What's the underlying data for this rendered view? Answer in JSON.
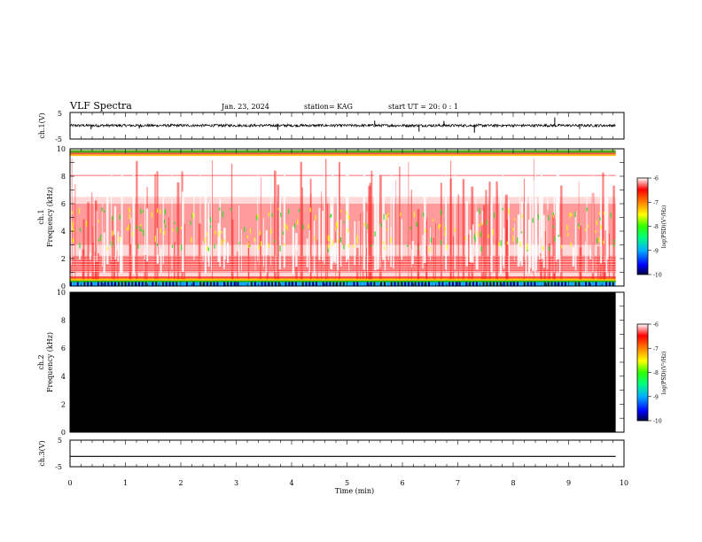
{
  "header": {
    "title": "VLF Spectra",
    "date": "Jan. 23, 2024",
    "station": "station= KAG",
    "start_ut": "start UT =  20: 0  : 1"
  },
  "chart_data": [
    {
      "type": "line",
      "panel": "ch1-waveform",
      "ylabel": "ch.1(V)",
      "xlim": [
        0,
        10
      ],
      "ylim": [
        -5,
        5
      ],
      "yticks": [
        "5",
        "-5"
      ],
      "series_color": "#000000",
      "baseline": 0.1,
      "noise_amplitude": 0.5,
      "spikes": [
        {
          "x": 0.38,
          "y": -1.3
        },
        {
          "x": 1.25,
          "y": -1.0
        },
        {
          "x": 3.75,
          "y": -1.6
        },
        {
          "x": 5.5,
          "y": 1.9
        },
        {
          "x": 6.3,
          "y": -2.2
        },
        {
          "x": 6.75,
          "y": 1.8
        },
        {
          "x": 7.3,
          "y": -2.6
        },
        {
          "x": 8.75,
          "y": 3.1
        },
        {
          "x": 9.2,
          "y": -1.2
        }
      ]
    },
    {
      "type": "heatmap",
      "panel": "ch1-spectrogram",
      "ylabel_line1": "ch.1",
      "ylabel_line2": "Frequency (kHz)",
      "xlim": [
        0,
        10
      ],
      "ylim": [
        0,
        10
      ],
      "yticks": [
        "0",
        "2",
        "4",
        "6",
        "8",
        "10"
      ],
      "data_extent_min": 9.85,
      "bands_khz": [
        {
          "from": 9.5,
          "to": 9.9,
          "level": -6.7
        },
        {
          "from": 8.0,
          "to": 8.1,
          "level": -7.5
        },
        {
          "from": 3.0,
          "to": 6.0,
          "level": -7.6
        },
        {
          "from": 1.0,
          "to": 2.2,
          "level": -7.1
        },
        {
          "from": 0.3,
          "to": 0.7,
          "level": -6.6
        },
        {
          "from": 0.0,
          "to": 0.3,
          "level": -9.0
        }
      ]
    },
    {
      "type": "heatmap",
      "panel": "ch2-spectrogram",
      "ylabel_line1": "ch.2",
      "ylabel_line2": "Frequency (kHz)",
      "xlim": [
        0,
        10
      ],
      "ylim": [
        0,
        10
      ],
      "yticks": [
        "0",
        "2",
        "4",
        "6",
        "8",
        "10"
      ],
      "data_extent_min": 9.85,
      "fill_color": "#000000"
    },
    {
      "type": "line",
      "panel": "ch3-waveform",
      "ylabel": "ch.3(V)",
      "xlim": [
        0,
        10
      ],
      "ylim": [
        -5,
        5
      ],
      "yticks": [
        "5",
        "-5"
      ],
      "constant_value": -1.1,
      "data_extent_min": 9.85,
      "xlabel": "Time (min)",
      "xticks": [
        "0",
        "1",
        "2",
        "3",
        "4",
        "5",
        "6",
        "7",
        "8",
        "9",
        "10"
      ]
    }
  ],
  "colorbars": [
    {
      "label": "log(PSD)(V²/Hz)",
      "ticks": [
        "-6",
        "-7",
        "-8",
        "-9",
        "-10"
      ],
      "range": [
        -10,
        -6
      ]
    },
    {
      "label": "log(PSD)(V²/Hz)",
      "ticks": [
        "-6",
        "-7",
        "-8",
        "-9",
        "-10"
      ],
      "range": [
        -10,
        -6
      ]
    }
  ]
}
